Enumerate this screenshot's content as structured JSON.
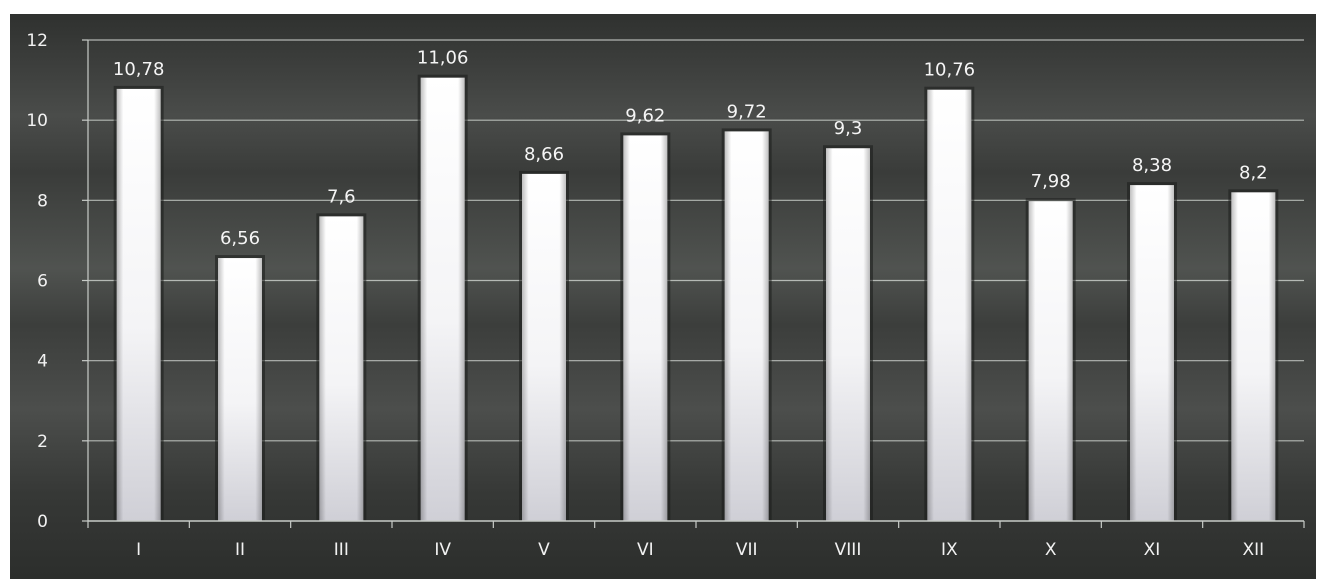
{
  "chart_data": {
    "type": "bar",
    "categories": [
      "I",
      "II",
      "III",
      "IV",
      "V",
      "VI",
      "VII",
      "VIII",
      "IX",
      "X",
      "XI",
      "XII"
    ],
    "values": [
      10.78,
      6.56,
      7.6,
      11.06,
      8.66,
      9.62,
      9.72,
      9.3,
      10.76,
      7.98,
      8.38,
      8.2
    ],
    "data_labels": [
      "10,78",
      "6,56",
      "7,6",
      "11,06",
      "8,66",
      "9,62",
      "9,72",
      "9,3",
      "10,76",
      "7,98",
      "8,38",
      "8,2"
    ],
    "ylim": [
      0,
      12
    ],
    "yticks": [
      0,
      2,
      4,
      6,
      8,
      10,
      12
    ],
    "ytick_labels": [
      "0",
      "2",
      "4",
      "6",
      "8",
      "10",
      "12"
    ],
    "grid": true,
    "legend": "none",
    "colors": {
      "background": "#3b3d3b",
      "bar": "#ffffff",
      "gridline": "#c8ccc8",
      "text": "#f2f2f2"
    }
  }
}
